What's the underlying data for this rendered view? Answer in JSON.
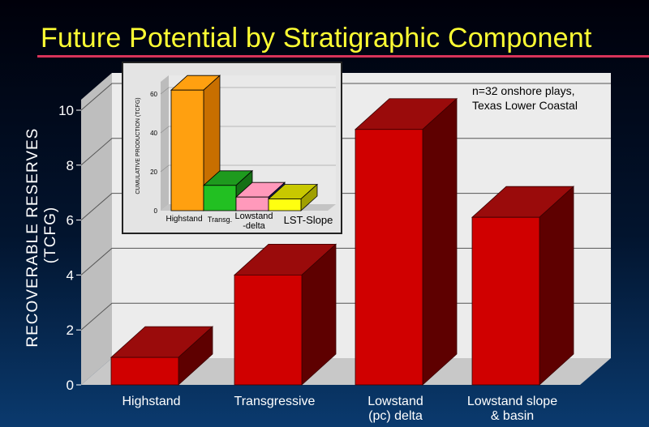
{
  "title": "Future Potential by Stratigraphic Component",
  "note_lines": [
    "n=32 onshore plays,",
    "Texas Lower Coastal"
  ],
  "colors": {
    "title": "#ffff33",
    "title_rule": "#d8335a",
    "bar_front": "#d00000",
    "bar_top": "#9a0b0b",
    "bar_side": "#5e0000",
    "plot_wall": "#ececec",
    "plot_floor": "#c8c8c8"
  },
  "chart_data": [
    {
      "type": "bar",
      "title": "",
      "ylabel_lines": [
        "RECOVERABLE RESERVES",
        "(TCFG)"
      ],
      "xlabel": "",
      "categories": [
        [
          "Highstand"
        ],
        [
          "Transgressive"
        ],
        [
          "Lowstand",
          "(pc) delta"
        ],
        [
          "Lowstand slope",
          "& basin"
        ]
      ],
      "values": [
        1.0,
        4.0,
        9.3,
        6.1
      ],
      "ylim": [
        0,
        10
      ],
      "yticks": [
        0,
        2,
        4,
        6,
        8,
        10
      ],
      "grid": true,
      "style": "3d"
    },
    {
      "type": "bar",
      "title": "",
      "ylabel": "CUMULATIVE PRODUCTION (TCFG)",
      "categories": [
        "Highstand",
        "Transg.",
        "Lowstand\n-delta",
        "LST-Slope"
      ],
      "values": [
        62,
        13,
        7,
        6
      ],
      "ylim": [
        0,
        60
      ],
      "yticks": [
        0,
        20,
        40,
        60
      ],
      "bar_colors": [
        {
          "front": "#ffa010",
          "top": "#ffa010",
          "side": "#c86f00"
        },
        {
          "front": "#22c022",
          "top": "#1e9a1e",
          "side": "#157015"
        },
        {
          "front": "#ff99bb",
          "top": "#ff99bb",
          "side": "#1a1a66"
        },
        {
          "front": "#ffff10",
          "top": "#c8c800",
          "side": "#a0a000"
        }
      ],
      "style": "3d"
    }
  ]
}
